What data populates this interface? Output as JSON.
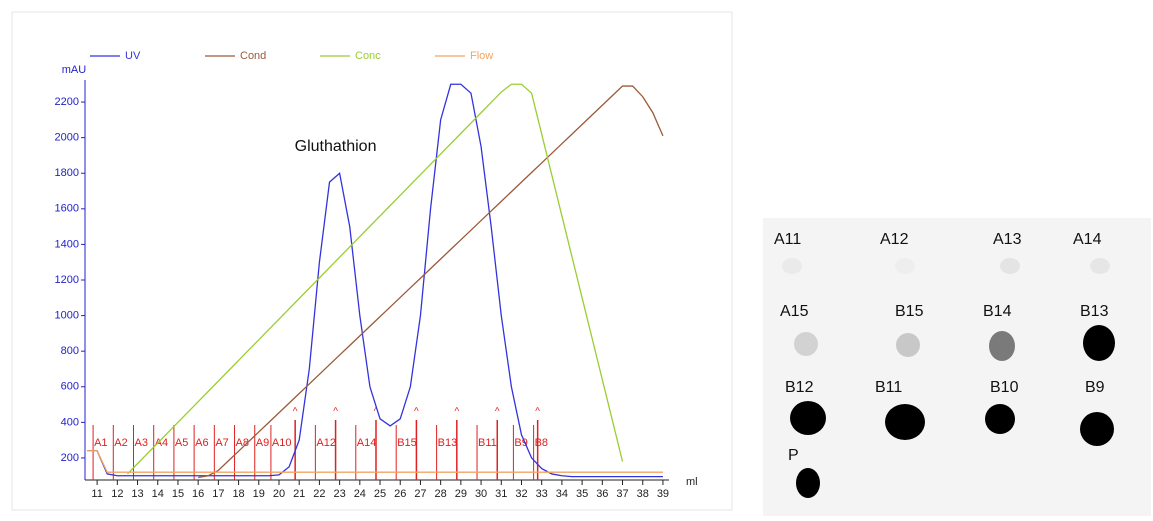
{
  "chart_data": {
    "type": "line",
    "y_axis_label": "mAU",
    "x_axis_label": "ml",
    "annotation": {
      "text": "Gluthathion",
      "x": 22.8,
      "y": 1950
    },
    "xlim": [
      10.4,
      39.3
    ],
    "ylim": [
      76,
      2324
    ],
    "xticks": [
      11,
      12,
      13,
      14,
      15,
      16,
      17,
      18,
      19,
      20,
      21,
      22,
      23,
      24,
      25,
      26,
      27,
      28,
      29,
      30,
      31,
      32,
      33,
      34,
      35,
      36,
      37,
      38,
      39
    ],
    "yticks": [
      200,
      400,
      600,
      800,
      1000,
      1200,
      1400,
      1600,
      1800,
      2000,
      2200
    ],
    "x": [
      10.5,
      11,
      11.5,
      12,
      12.5,
      13,
      13.5,
      14,
      14.5,
      15,
      15.5,
      16,
      16.5,
      17,
      17.5,
      18,
      18.5,
      19,
      19.5,
      20,
      20.5,
      21,
      21.5,
      22,
      22.5,
      23,
      23.5,
      24,
      24.5,
      25,
      25.5,
      26,
      26.5,
      27,
      27.5,
      28,
      28.5,
      29,
      29.5,
      30,
      30.5,
      31,
      31.5,
      32,
      32.5,
      33,
      33.5,
      34,
      34.5,
      35,
      35.5,
      36,
      36.5,
      37,
      37.5,
      38,
      38.5,
      39
    ],
    "series": [
      {
        "name": "UV",
        "color": "#3333dd",
        "values": [
          240,
          240,
          110,
          100,
          100,
          100,
          100,
          100,
          100,
          100,
          100,
          100,
          100,
          100,
          100,
          100,
          100,
          100,
          100,
          105,
          150,
          300,
          700,
          1300,
          1750,
          1800,
          1500,
          1000,
          600,
          420,
          380,
          420,
          600,
          1000,
          1600,
          2100,
          2300,
          2300,
          2250,
          1950,
          1500,
          1000,
          600,
          330,
          200,
          140,
          110,
          100,
          95,
          95,
          95,
          95,
          95,
          95,
          95,
          95,
          95,
          95
        ]
      },
      {
        "name": "Cond",
        "color": "#9a5a3a",
        "values": [
          null,
          null,
          null,
          null,
          null,
          null,
          null,
          null,
          null,
          null,
          null,
          90,
          100,
          130,
          184,
          238,
          292,
          346,
          400,
          454,
          508,
          562,
          616,
          670,
          724,
          778,
          832,
          886,
          940,
          994,
          1048,
          1102,
          1156,
          1210,
          1264,
          1318,
          1372,
          1426,
          1480,
          1534,
          1588,
          1642,
          1696,
          1750,
          1804,
          1858,
          1912,
          1966,
          2020,
          2074,
          2128,
          2182,
          2236,
          2290,
          2290,
          2230,
          2140,
          2010
        ]
      },
      {
        "name": "Conc",
        "color": "#9acd32",
        "values": [
          null,
          null,
          null,
          null,
          110,
          168,
          226,
          284,
          342,
          400,
          458,
          516,
          574,
          632,
          690,
          748,
          806,
          864,
          922,
          980,
          1038,
          1096,
          1154,
          1212,
          1270,
          1328,
          1386,
          1444,
          1502,
          1560,
          1618,
          1676,
          1734,
          1792,
          1850,
          1908,
          1966,
          2024,
          2082,
          2140,
          2198,
          2256,
          2300,
          2300,
          2250,
          2020,
          1790,
          1560,
          1330,
          1100,
          870,
          640,
          410,
          180,
          null,
          null,
          null,
          null
        ]
      },
      {
        "name": "Flow",
        "color": "#f4a460",
        "values": [
          240,
          240,
          120,
          120,
          120,
          120,
          120,
          120,
          120,
          120,
          120,
          120,
          120,
          120,
          120,
          120,
          120,
          120,
          120,
          120,
          120,
          120,
          120,
          120,
          120,
          120,
          120,
          120,
          120,
          120,
          120,
          120,
          120,
          120,
          120,
          120,
          120,
          120,
          120,
          120,
          120,
          120,
          120,
          120,
          120,
          120,
          120,
          120,
          120,
          120,
          120,
          120,
          120,
          120,
          120,
          120,
          120,
          120
        ]
      }
    ],
    "fractions": [
      {
        "label": "A1",
        "x": 10.8
      },
      {
        "label": "A2",
        "x": 11.8
      },
      {
        "label": "A3",
        "x": 12.8
      },
      {
        "label": "A4",
        "x": 13.8
      },
      {
        "label": "A5",
        "x": 14.8
      },
      {
        "label": "A6",
        "x": 15.8
      },
      {
        "label": "A7",
        "x": 16.8
      },
      {
        "label": "A8",
        "x": 17.8
      },
      {
        "label": "A9",
        "x": 18.8
      },
      {
        "label": "A10",
        "x": 19.6
      },
      {
        "label": "A12",
        "x": 21.8
      },
      {
        "label": "A14",
        "x": 23.8
      },
      {
        "label": "B15",
        "x": 25.8
      },
      {
        "label": "B13",
        "x": 27.8
      },
      {
        "label": "B11",
        "x": 29.8
      },
      {
        "label": "B9",
        "x": 31.6
      },
      {
        "label": "B8",
        "x": 32.6
      }
    ],
    "caret_label": "^",
    "carets": [
      20.8,
      22.8,
      24.8,
      26.8,
      28.8,
      30.8,
      32.8
    ]
  },
  "blot": {
    "labels": [
      "A11",
      "A12",
      "A13",
      "A14",
      "A15",
      "B15",
      "B14",
      "B13",
      "B12",
      "B11",
      "B10",
      "B9",
      "P"
    ]
  }
}
